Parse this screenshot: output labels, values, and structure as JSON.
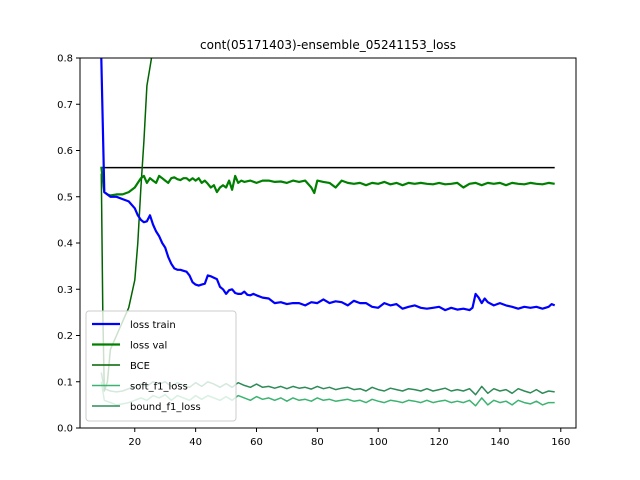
{
  "chart_data": {
    "type": "line",
    "title": "cont(05171403)-ensemble_05241153_loss",
    "xlabel": "",
    "ylabel": "",
    "xlim": [
      2,
      165
    ],
    "ylim": [
      0,
      0.8
    ],
    "x_ticks": [
      20,
      40,
      60,
      80,
      100,
      120,
      140,
      160
    ],
    "y_ticks": [
      0.0,
      0.1,
      0.2,
      0.3,
      0.4,
      0.5,
      0.6,
      0.7,
      0.8
    ],
    "grid": false,
    "legend_position": "lower-left",
    "reference_line": {
      "y": 0.563,
      "x_start": 9,
      "x_end": 158,
      "color": "#000000"
    },
    "series": [
      {
        "name": "loss train",
        "color": "#0000ff",
        "width": 2.2,
        "x": [
          9,
          10,
          12,
          14,
          16,
          18,
          20,
          21,
          22,
          23,
          24,
          25,
          26,
          27,
          28,
          29,
          30,
          31,
          32,
          33,
          34,
          35,
          36,
          37,
          38,
          39,
          40,
          41,
          42,
          43,
          44,
          45,
          46,
          47,
          48,
          49,
          50,
          51,
          52,
          53,
          54,
          55,
          56,
          57,
          58,
          59,
          60,
          62,
          64,
          66,
          68,
          70,
          72,
          74,
          76,
          78,
          80,
          82,
          84,
          86,
          88,
          90,
          92,
          94,
          96,
          98,
          100,
          102,
          104,
          106,
          108,
          110,
          112,
          114,
          116,
          118,
          120,
          122,
          124,
          126,
          128,
          130,
          131,
          132,
          133,
          134,
          135,
          136,
          138,
          140,
          142,
          144,
          146,
          148,
          150,
          152,
          154,
          156,
          157,
          158
        ],
        "values": [
          0.8,
          0.51,
          0.5,
          0.5,
          0.495,
          0.49,
          0.475,
          0.46,
          0.45,
          0.445,
          0.447,
          0.46,
          0.44,
          0.425,
          0.415,
          0.4,
          0.39,
          0.37,
          0.355,
          0.345,
          0.342,
          0.342,
          0.34,
          0.338,
          0.33,
          0.315,
          0.31,
          0.308,
          0.31,
          0.312,
          0.33,
          0.328,
          0.325,
          0.322,
          0.305,
          0.3,
          0.29,
          0.298,
          0.3,
          0.292,
          0.29,
          0.29,
          0.295,
          0.288,
          0.287,
          0.29,
          0.287,
          0.282,
          0.28,
          0.27,
          0.272,
          0.268,
          0.27,
          0.27,
          0.265,
          0.272,
          0.27,
          0.278,
          0.27,
          0.274,
          0.272,
          0.265,
          0.275,
          0.27,
          0.27,
          0.262,
          0.26,
          0.27,
          0.265,
          0.268,
          0.258,
          0.262,
          0.265,
          0.26,
          0.258,
          0.26,
          0.262,
          0.255,
          0.26,
          0.256,
          0.258,
          0.255,
          0.26,
          0.29,
          0.282,
          0.27,
          0.28,
          0.272,
          0.265,
          0.27,
          0.265,
          0.262,
          0.258,
          0.262,
          0.26,
          0.262,
          0.258,
          0.262,
          0.268,
          0.265
        ]
      },
      {
        "name": "loss val",
        "color": "#008000",
        "width": 2.2,
        "x": [
          9,
          10,
          11,
          12,
          14,
          16,
          18,
          20,
          21,
          22,
          23,
          24,
          25,
          26,
          27,
          28,
          29,
          30,
          31,
          32,
          33,
          34,
          35,
          36,
          37,
          38,
          39,
          40,
          41,
          42,
          43,
          44,
          45,
          46,
          47,
          48,
          49,
          50,
          51,
          52,
          53,
          54,
          55,
          56,
          58,
          60,
          62,
          64,
          66,
          68,
          70,
          72,
          74,
          76,
          78,
          79,
          80,
          82,
          84,
          86,
          88,
          90,
          92,
          94,
          96,
          98,
          100,
          102,
          104,
          106,
          108,
          110,
          112,
          114,
          116,
          118,
          120,
          122,
          124,
          126,
          128,
          130,
          132,
          134,
          136,
          138,
          140,
          142,
          144,
          146,
          148,
          150,
          152,
          154,
          156,
          158
        ],
        "values": [
          0.565,
          0.51,
          0.505,
          0.503,
          0.505,
          0.505,
          0.51,
          0.52,
          0.53,
          0.54,
          0.545,
          0.53,
          0.54,
          0.535,
          0.53,
          0.545,
          0.54,
          0.535,
          0.53,
          0.54,
          0.542,
          0.538,
          0.536,
          0.54,
          0.54,
          0.535,
          0.54,
          0.535,
          0.54,
          0.53,
          0.535,
          0.528,
          0.52,
          0.525,
          0.51,
          0.52,
          0.525,
          0.52,
          0.535,
          0.515,
          0.545,
          0.53,
          0.535,
          0.532,
          0.535,
          0.53,
          0.535,
          0.535,
          0.532,
          0.533,
          0.53,
          0.535,
          0.532,
          0.535,
          0.52,
          0.508,
          0.535,
          0.532,
          0.53,
          0.52,
          0.535,
          0.53,
          0.528,
          0.53,
          0.525,
          0.53,
          0.528,
          0.532,
          0.527,
          0.53,
          0.525,
          0.53,
          0.528,
          0.53,
          0.528,
          0.527,
          0.53,
          0.527,
          0.528,
          0.53,
          0.52,
          0.528,
          0.53,
          0.525,
          0.53,
          0.528,
          0.53,
          0.525,
          0.53,
          0.528,
          0.527,
          0.53,
          0.528,
          0.527,
          0.53,
          0.528
        ]
      },
      {
        "name": "BCE",
        "color": "#006400",
        "width": 1.5,
        "x": [
          9,
          9.5,
          10,
          11,
          12,
          14,
          16,
          18,
          20,
          21,
          22,
          23,
          24,
          25,
          26,
          27
        ],
        "values": [
          0.55,
          0.25,
          0.08,
          0.1,
          0.17,
          0.2,
          0.23,
          0.26,
          0.32,
          0.4,
          0.52,
          0.62,
          0.74,
          0.78,
          0.82,
          0.9
        ]
      },
      {
        "name": "soft_f1_loss",
        "color": "#3cb371",
        "width": 1.5,
        "x": [
          9,
          10,
          12,
          14,
          16,
          18,
          20,
          22,
          24,
          26,
          28,
          30,
          32,
          34,
          36,
          38,
          40,
          42,
          44,
          46,
          48,
          50,
          52,
          54,
          56,
          58,
          60,
          62,
          64,
          66,
          68,
          70,
          72,
          74,
          76,
          78,
          80,
          82,
          84,
          86,
          88,
          90,
          92,
          94,
          96,
          98,
          100,
          102,
          104,
          106,
          108,
          110,
          112,
          114,
          116,
          118,
          120,
          122,
          124,
          126,
          128,
          130,
          132,
          134,
          136,
          138,
          140,
          142,
          144,
          146,
          148,
          150,
          152,
          154,
          156,
          158
        ],
        "values": [
          0.1,
          0.06,
          0.055,
          0.05,
          0.052,
          0.055,
          0.06,
          0.065,
          0.06,
          0.07,
          0.065,
          0.072,
          0.06,
          0.07,
          0.065,
          0.06,
          0.07,
          0.062,
          0.07,
          0.065,
          0.06,
          0.068,
          0.06,
          0.07,
          0.065,
          0.06,
          0.068,
          0.062,
          0.065,
          0.06,
          0.065,
          0.058,
          0.065,
          0.06,
          0.062,
          0.058,
          0.065,
          0.06,
          0.062,
          0.058,
          0.06,
          0.062,
          0.058,
          0.06,
          0.055,
          0.062,
          0.058,
          0.055,
          0.06,
          0.058,
          0.055,
          0.06,
          0.058,
          0.055,
          0.06,
          0.055,
          0.058,
          0.06,
          0.055,
          0.058,
          0.055,
          0.06,
          0.048,
          0.065,
          0.05,
          0.06,
          0.055,
          0.058,
          0.05,
          0.06,
          0.055,
          0.052,
          0.058,
          0.05,
          0.055,
          0.055
        ]
      },
      {
        "name": "bound_f1_loss",
        "color": "#2e8b57",
        "width": 1.5,
        "x": [
          9,
          10,
          12,
          14,
          16,
          18,
          20,
          22,
          24,
          26,
          28,
          30,
          32,
          34,
          36,
          38,
          40,
          42,
          44,
          46,
          48,
          50,
          52,
          54,
          56,
          58,
          60,
          62,
          64,
          66,
          68,
          70,
          72,
          74,
          76,
          78,
          80,
          82,
          84,
          86,
          88,
          90,
          92,
          94,
          96,
          98,
          100,
          102,
          104,
          106,
          108,
          110,
          112,
          114,
          116,
          118,
          120,
          122,
          124,
          126,
          128,
          130,
          132,
          134,
          136,
          138,
          140,
          142,
          144,
          146,
          148,
          150,
          152,
          154,
          156,
          158
        ],
        "values": [
          0.12,
          0.085,
          0.08,
          0.078,
          0.08,
          0.085,
          0.09,
          0.095,
          0.09,
          0.1,
          0.095,
          0.1,
          0.09,
          0.098,
          0.092,
          0.088,
          0.098,
          0.09,
          0.1,
          0.095,
          0.088,
          0.096,
          0.088,
          0.098,
          0.092,
          0.088,
          0.095,
          0.088,
          0.09,
          0.086,
          0.09,
          0.085,
          0.09,
          0.086,
          0.088,
          0.084,
          0.09,
          0.085,
          0.088,
          0.083,
          0.086,
          0.088,
          0.083,
          0.085,
          0.08,
          0.088,
          0.083,
          0.08,
          0.086,
          0.083,
          0.08,
          0.085,
          0.083,
          0.08,
          0.085,
          0.08,
          0.083,
          0.086,
          0.08,
          0.083,
          0.08,
          0.085,
          0.072,
          0.09,
          0.075,
          0.085,
          0.08,
          0.083,
          0.075,
          0.085,
          0.08,
          0.076,
          0.083,
          0.075,
          0.08,
          0.078
        ]
      }
    ]
  }
}
